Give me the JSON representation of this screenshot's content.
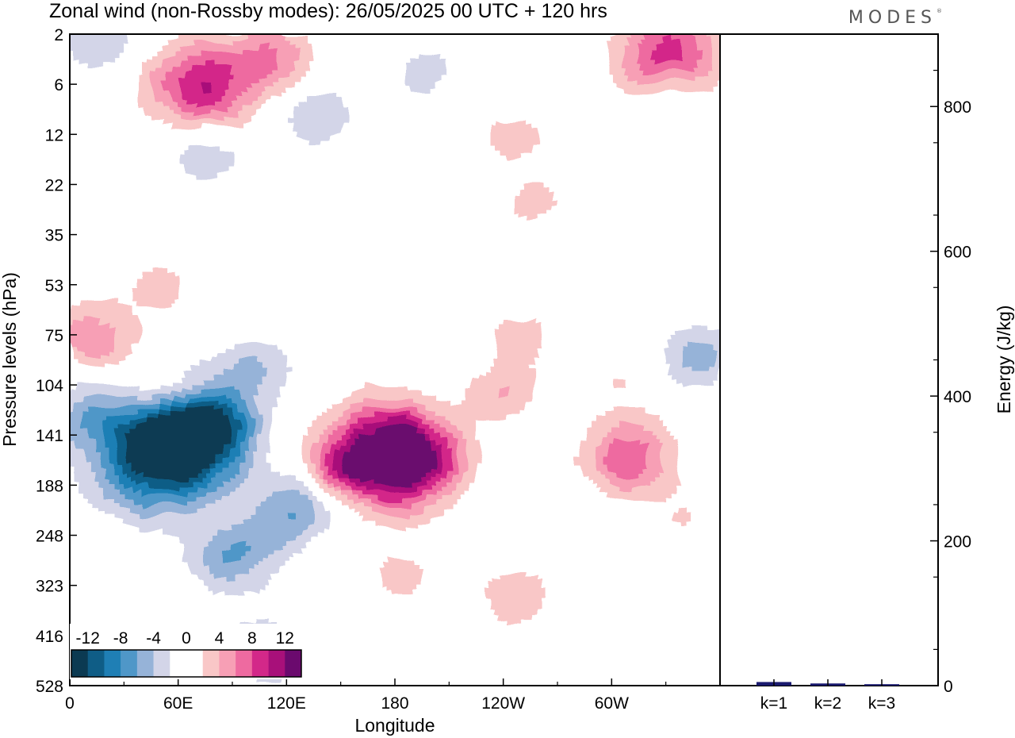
{
  "title": "Zonal wind (non-Rossby modes):  26/05/2025  00 UTC  + 120 hrs",
  "brand": "MODES",
  "brand_mark": "®",
  "colors": {
    "levels": [
      "#0b3a52",
      "#0f5d86",
      "#1f7fb5",
      "#4f97c8",
      "#96b3d8",
      "#d3d5e8",
      "#ffffff",
      "#ffffff",
      "#f9c7c7",
      "#f79fb5",
      "#ee6aa0",
      "#d32889",
      "#a8107a",
      "#6b0a6e"
    ],
    "bar": "#1a1a6e"
  },
  "chart_data": [
    {
      "type": "heatmap",
      "title": "Zonal wind (non-Rossby modes):  26/05/2025  00 UTC  + 120 hrs",
      "xlabel": "Longitude",
      "ylabel": "Pressure levels (hPa)",
      "x_ticks": [
        "0",
        "60E",
        "120E",
        "180",
        "120W",
        "60W"
      ],
      "x_range": [
        0,
        360
      ],
      "y_ticks": [
        "2",
        "6",
        "12",
        "22",
        "35",
        "53",
        "75",
        "104",
        "141",
        "188",
        "248",
        "323",
        "416",
        "528"
      ],
      "colorbar": {
        "tick_labels": [
          "-12",
          "-8",
          "-4",
          "0",
          "4",
          "8",
          "12"
        ],
        "levels": [
          -14,
          -12,
          -10,
          -8,
          -6,
          -4,
          -2,
          0,
          2,
          4,
          6,
          8,
          10,
          12,
          14
        ]
      },
      "features": [
        {
          "lon": 50,
          "level_index": 8.3,
          "value": -16
        },
        {
          "lon": 72,
          "level_index": 7.7,
          "value": -10
        },
        {
          "lon": 88,
          "level_index": 10.4,
          "value": -6
        },
        {
          "lon": 105,
          "level_index": 12.3,
          "value": -5
        },
        {
          "lon": 10,
          "level_index": 7.5,
          "value": -4
        },
        {
          "lon": 102,
          "level_index": 6.6,
          "value": -4
        },
        {
          "lon": 110,
          "level_index": 10,
          "value": -2
        },
        {
          "lon": 172,
          "level_index": 8.4,
          "value": 14
        },
        {
          "lon": 192,
          "level_index": 8.4,
          "value": 7
        },
        {
          "lon": 182,
          "level_index": 10.8,
          "value": 3
        },
        {
          "lon": 238,
          "level_index": 7.1,
          "value": 4
        },
        {
          "lon": 248,
          "level_index": 6,
          "value": 3
        },
        {
          "lon": 125,
          "level_index": 9.4,
          "value": -6
        },
        {
          "lon": 245,
          "level_index": 11.2,
          "value": 4
        },
        {
          "lon": 308,
          "level_index": 8.4,
          "value": 8
        },
        {
          "lon": 305,
          "level_index": 6.8,
          "value": 2
        },
        {
          "lon": 348,
          "level_index": 6.4,
          "value": -5
        },
        {
          "lon": 52,
          "level_index": 7.2,
          "value": 5
        },
        {
          "lon": 12,
          "level_index": 6.0,
          "value": 6
        },
        {
          "lon": 48,
          "level_index": 5.0,
          "value": 3
        },
        {
          "lon": 72,
          "level_index": 1.0,
          "value": 10
        },
        {
          "lon": 110,
          "level_index": 0.4,
          "value": 6
        },
        {
          "lon": 330,
          "level_index": 0.45,
          "value": 10
        },
        {
          "lon": 215,
          "level_index": 1.1,
          "value": 3
        },
        {
          "lon": 200,
          "level_index": 0.8,
          "value": -4
        },
        {
          "lon": 75,
          "level_index": 2.3,
          "value": -4
        },
        {
          "lon": 135,
          "level_index": 1.6,
          "value": -4
        },
        {
          "lon": 15,
          "level_index": 0.1,
          "value": -4
        },
        {
          "lon": 330,
          "level_index": 1.1,
          "value": -4
        },
        {
          "lon": 255,
          "level_index": 3.3,
          "value": 3
        },
        {
          "lon": 245,
          "level_index": 2.0,
          "value": 3
        },
        {
          "lon": 298,
          "level_index": 2.9,
          "value": -2
        },
        {
          "lon": 265,
          "level_index": 4.4,
          "value": -2
        },
        {
          "lon": 272,
          "level_index": 5.0,
          "value": 2
        },
        {
          "lon": 345,
          "level_index": 4.4,
          "value": 2
        },
        {
          "lon": 85,
          "level_index": 12.6,
          "value": 2
        },
        {
          "lon": 150,
          "level_index": 8.5,
          "value": 3
        },
        {
          "lon": 340,
          "level_index": 9.6,
          "value": 2
        }
      ]
    },
    {
      "type": "bar",
      "categories": [
        "k=1",
        "k=2",
        "k=3"
      ],
      "values": [
        5,
        3,
        2
      ],
      "ylabel": "Energy (J/kg)",
      "y_ticks": [
        "0",
        "200",
        "400",
        "600",
        "800"
      ],
      "ylim": [
        0,
        900
      ]
    }
  ]
}
